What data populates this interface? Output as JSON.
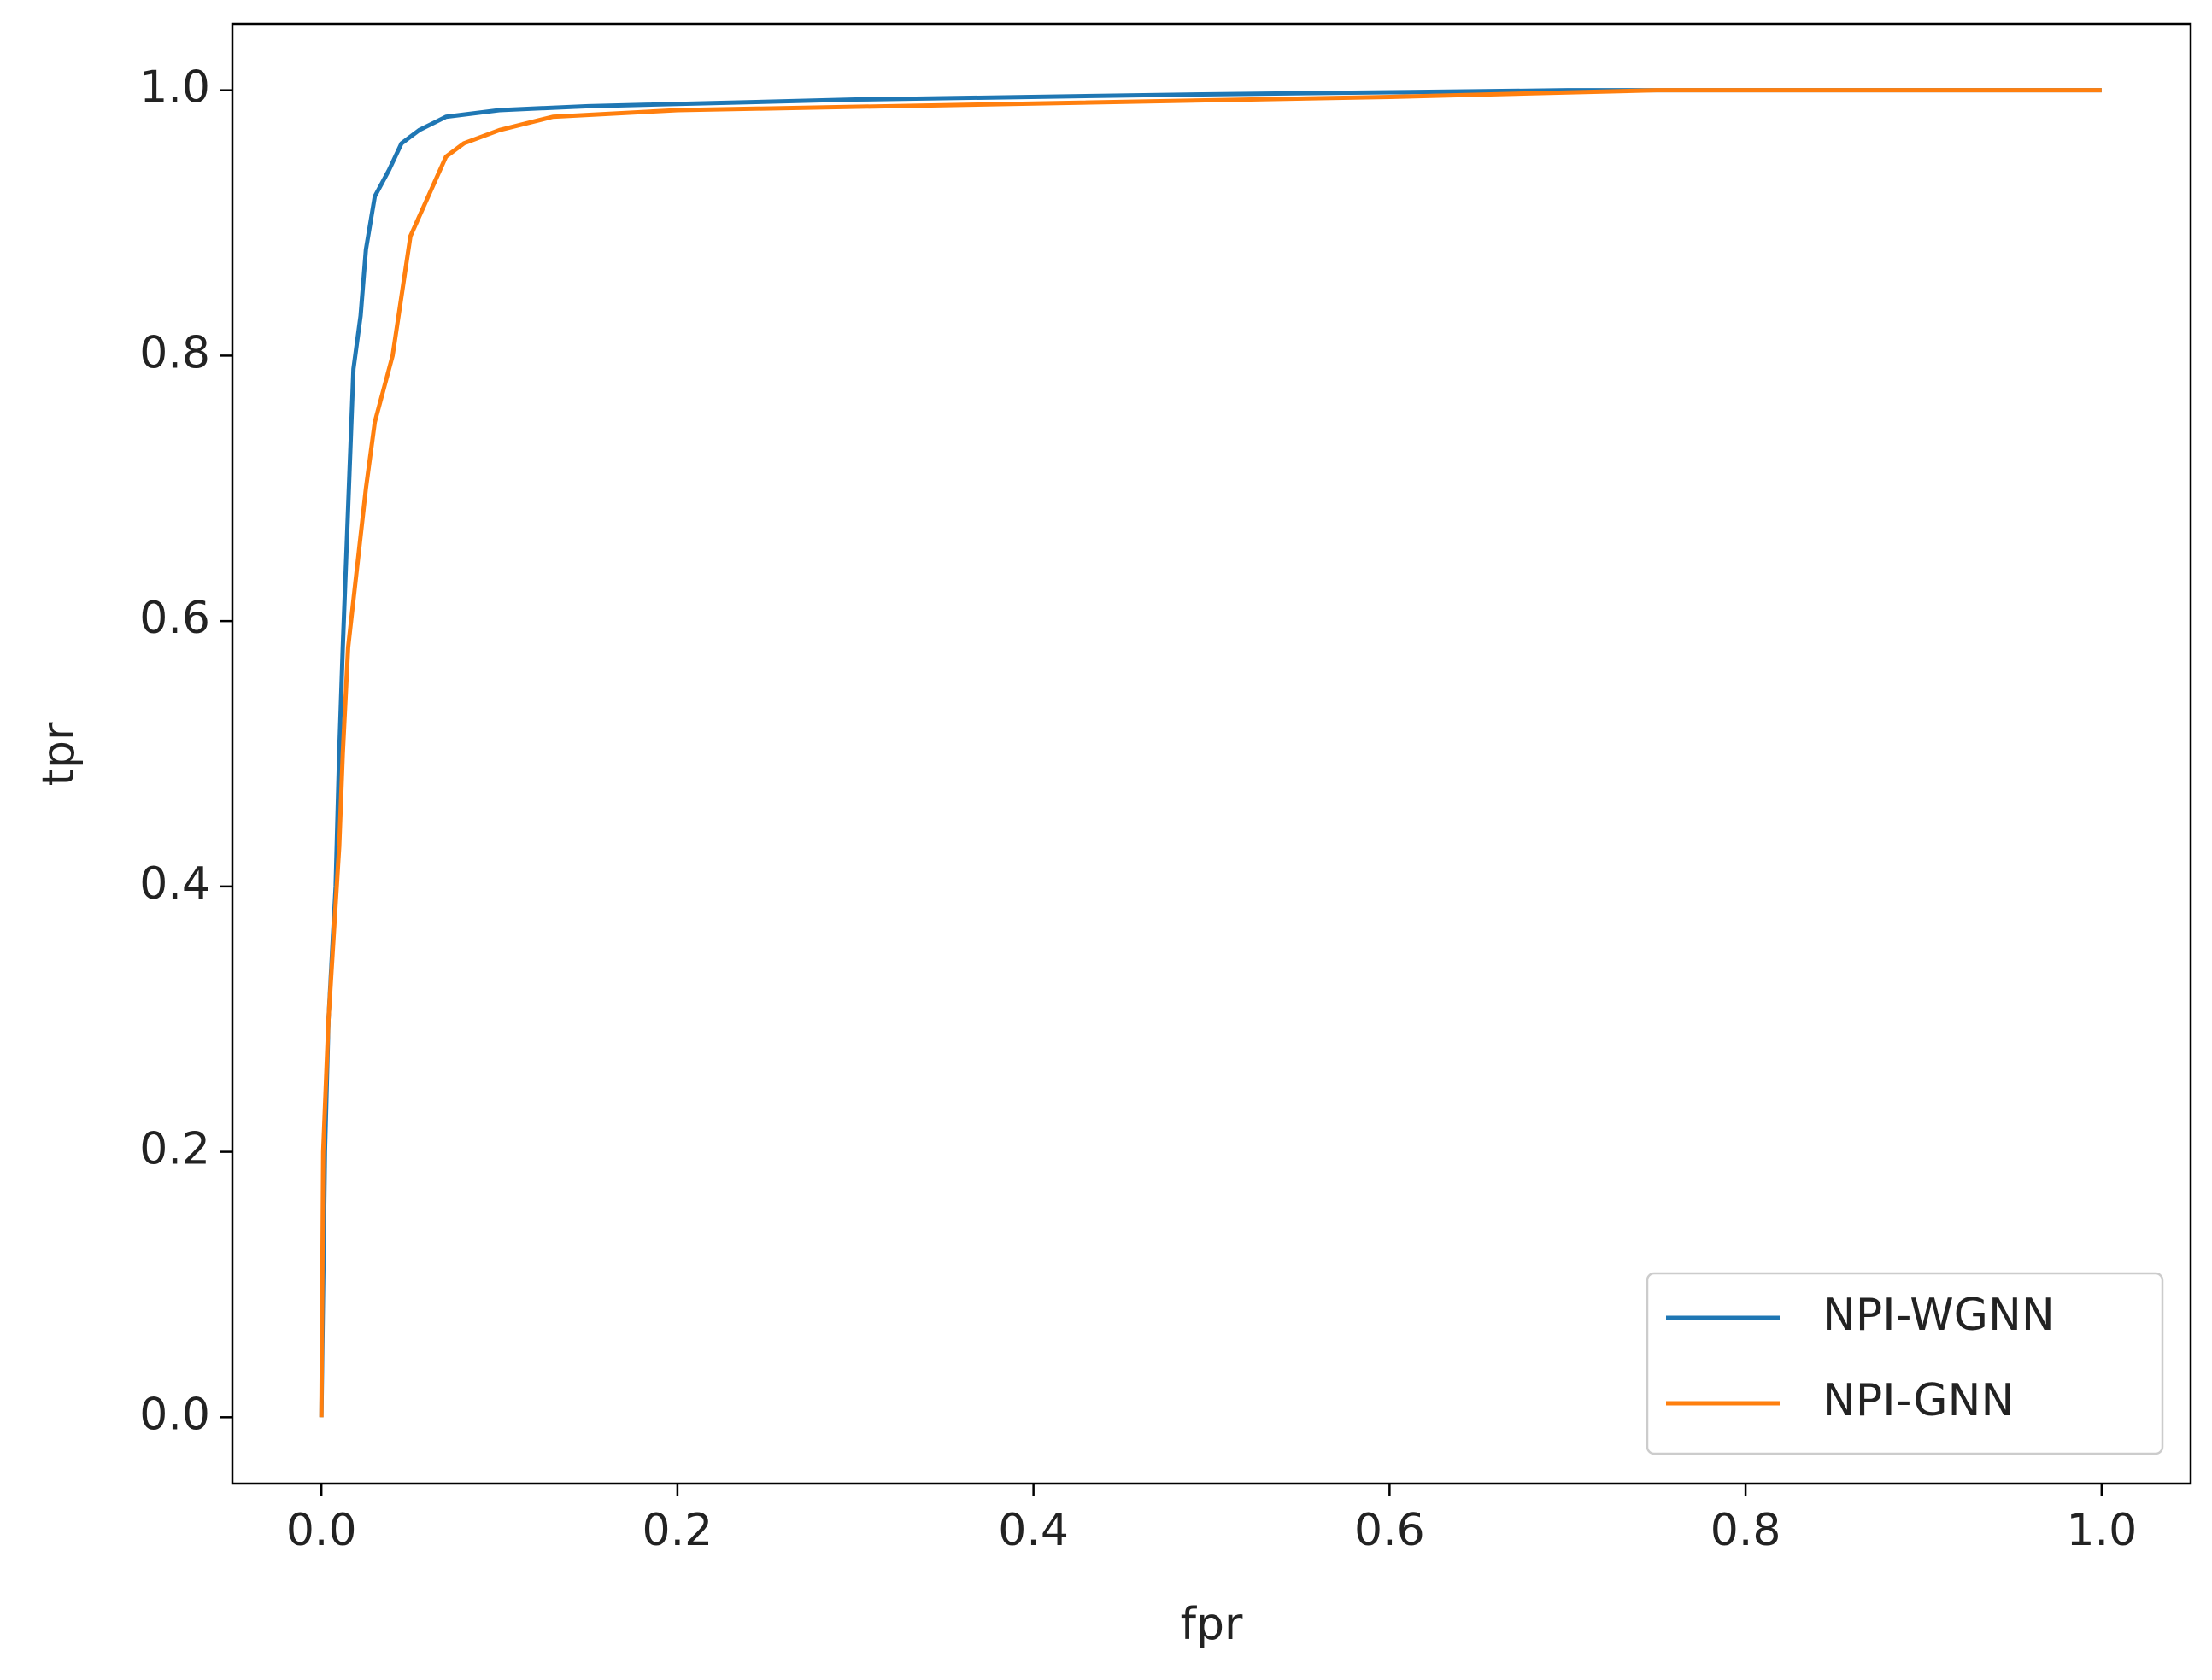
{
  "chart_data": {
    "type": "line",
    "x_label": "fpr",
    "y_label": "tpr",
    "xlim": [
      -0.05,
      1.05
    ],
    "ylim": [
      -0.05,
      1.05
    ],
    "xticks": [
      {
        "value": 0,
        "label": "0.0"
      },
      0.2,
      0.4,
      0.6,
      0.8,
      {
        "value": 1,
        "label": "1.0"
      }
    ],
    "yticks": [
      {
        "value": 0,
        "label": "0.0"
      },
      0.2,
      0.4,
      0.6,
      0.8,
      {
        "value": 1,
        "label": "1.0"
      }
    ],
    "grid": false,
    "legend": "lower right",
    "series": [
      {
        "name": "NPI-WGNN",
        "color": "#1f77b4",
        "x": [
          0,
          0.002,
          0.004,
          0.008,
          0.01,
          0.012,
          0.014,
          0.016,
          0.018,
          0.022,
          0.025,
          0.03,
          0.038,
          0.045,
          0.055,
          0.07,
          0.1,
          0.15,
          0.3,
          0.5,
          0.7,
          1
        ],
        "values": [
          0,
          0.2,
          0.3,
          0.4,
          0.5,
          0.58,
          0.65,
          0.72,
          0.79,
          0.83,
          0.88,
          0.92,
          0.94,
          0.96,
          0.97,
          0.98,
          0.985,
          0.988,
          0.993,
          0.997,
          1,
          1
        ]
      },
      {
        "name": "NPI-GNN",
        "color": "#ff7f0e",
        "x": [
          0,
          0.001,
          0.004,
          0.01,
          0.012,
          0.015,
          0.02,
          0.025,
          0.03,
          0.04,
          0.05,
          0.06,
          0.07,
          0.08,
          0.1,
          0.13,
          0.2,
          0.4,
          0.6,
          0.75,
          1
        ],
        "values": [
          0,
          0.2,
          0.3,
          0.43,
          0.5,
          0.58,
          0.64,
          0.7,
          0.75,
          0.8,
          0.89,
          0.92,
          0.95,
          0.96,
          0.97,
          0.98,
          0.985,
          0.99,
          0.995,
          1,
          1
        ]
      }
    ]
  }
}
